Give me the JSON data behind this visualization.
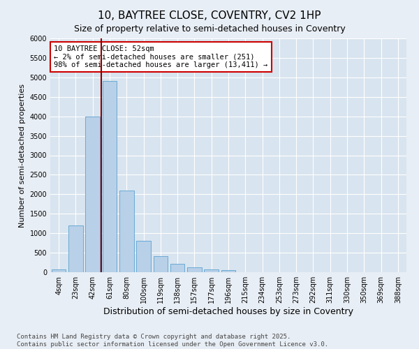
{
  "title": "10, BAYTREE CLOSE, COVENTRY, CV2 1HP",
  "subtitle": "Size of property relative to semi-detached houses in Coventry",
  "xlabel": "Distribution of semi-detached houses by size in Coventry",
  "ylabel": "Number of semi-detached properties",
  "categories": [
    "4sqm",
    "23sqm",
    "42sqm",
    "61sqm",
    "80sqm",
    "100sqm",
    "119sqm",
    "138sqm",
    "157sqm",
    "177sqm",
    "196sqm",
    "215sqm",
    "234sqm",
    "253sqm",
    "273sqm",
    "292sqm",
    "311sqm",
    "330sqm",
    "350sqm",
    "369sqm",
    "388sqm"
  ],
  "values": [
    80,
    1200,
    4000,
    4900,
    2100,
    800,
    420,
    210,
    130,
    80,
    50,
    0,
    0,
    0,
    0,
    0,
    0,
    0,
    0,
    0,
    0
  ],
  "bar_color": "#b8d0e8",
  "bar_edge_color": "#6aaad4",
  "vline_color": "#8b0000",
  "vline_x": 2.5,
  "annotation_text": "10 BAYTREE CLOSE: 52sqm\n← 2% of semi-detached houses are smaller (251)\n98% of semi-detached houses are larger (13,411) →",
  "annotation_box_color": "white",
  "annotation_box_edge": "#cc0000",
  "ylim": [
    0,
    6000
  ],
  "yticks": [
    0,
    500,
    1000,
    1500,
    2000,
    2500,
    3000,
    3500,
    4000,
    4500,
    5000,
    5500,
    6000
  ],
  "bg_color": "#e8eef5",
  "plot_bg_color": "#d8e4ef",
  "grid_color": "#ffffff",
  "footer": "Contains HM Land Registry data © Crown copyright and database right 2025.\nContains public sector information licensed under the Open Government Licence v3.0.",
  "title_fontsize": 11,
  "subtitle_fontsize": 9,
  "xlabel_fontsize": 9,
  "ylabel_fontsize": 8,
  "tick_fontsize": 7,
  "annotation_fontsize": 7.5,
  "footer_fontsize": 6.5
}
